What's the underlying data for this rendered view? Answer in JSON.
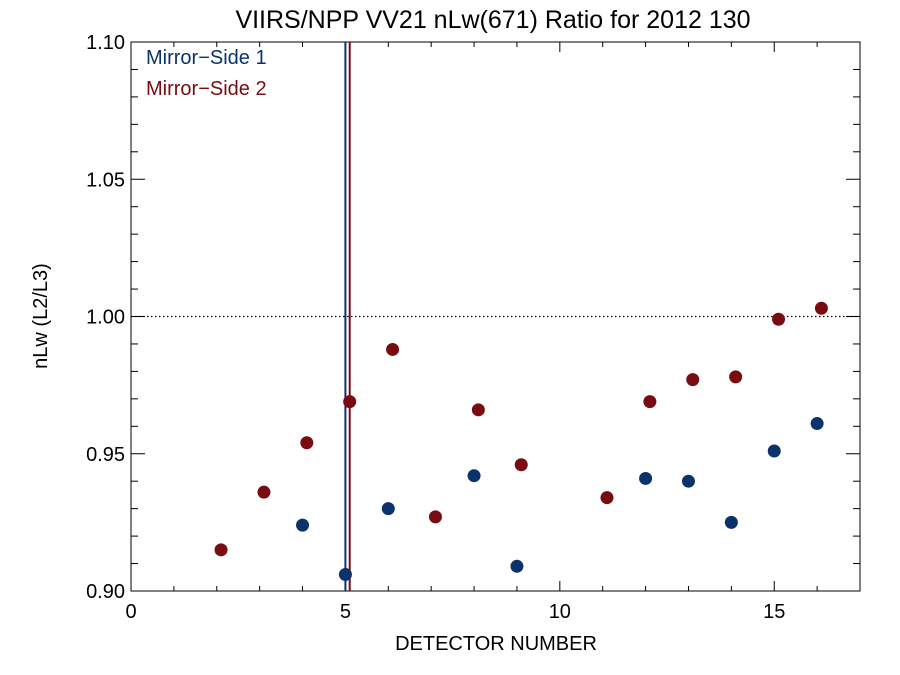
{
  "chart_data": {
    "type": "scatter",
    "title": "VIIRS/NPP VV21 nLw(671) Ratio for 2012 130",
    "xlabel": "DETECTOR NUMBER",
    "ylabel": "nLw (L2/L3)",
    "xlim": [
      0,
      17
    ],
    "ylim": [
      0.9,
      1.1
    ],
    "x_ticks": [
      0,
      5,
      10,
      15
    ],
    "x_tick_labels": [
      "0",
      "5",
      "10",
      "15"
    ],
    "y_ticks": [
      0.9,
      0.95,
      1.0,
      1.05,
      1.1
    ],
    "y_tick_labels": [
      "0.90",
      "0.95",
      "1.00",
      "1.05",
      "1.10"
    ],
    "reference_line": {
      "y": 1.0,
      "style": "dotted"
    },
    "legend_position": "top-left",
    "series": [
      {
        "name": "Mirror−Side 1",
        "color": "#0b336b",
        "x": [
          4,
          5,
          6,
          8,
          9,
          12,
          13,
          14,
          15,
          16
        ],
        "y": [
          0.924,
          0.906,
          0.93,
          0.942,
          0.909,
          0.941,
          0.94,
          0.925,
          0.951,
          0.961
        ],
        "vline_x": 5.0
      },
      {
        "name": "Mirror−Side 2",
        "color": "#780c12",
        "x": [
          2.1,
          3.1,
          4.1,
          5.1,
          6.1,
          7.1,
          8.1,
          9.1,
          11.1,
          12.1,
          13.1,
          14.1,
          15.1,
          16.1
        ],
        "y": [
          0.915,
          0.936,
          0.954,
          0.969,
          0.988,
          0.927,
          0.966,
          0.946,
          0.934,
          0.969,
          0.977,
          0.978,
          0.999,
          1.003
        ],
        "vline_x": 5.1
      }
    ]
  }
}
